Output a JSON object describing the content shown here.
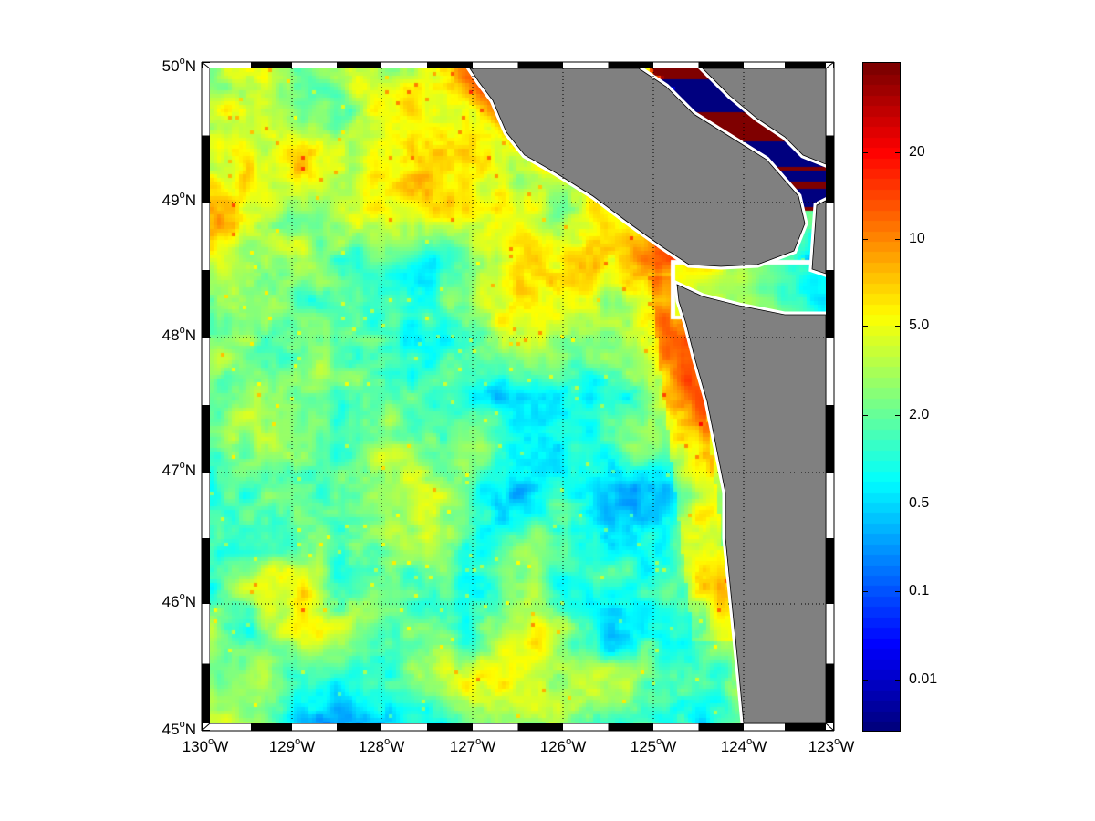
{
  "map": {
    "latitude_labels": [
      {
        "deg": "50",
        "hem": "N"
      },
      {
        "deg": "49",
        "hem": "N"
      },
      {
        "deg": "48",
        "hem": "N"
      },
      {
        "deg": "47",
        "hem": "N"
      },
      {
        "deg": "46",
        "hem": "N"
      },
      {
        "deg": "45",
        "hem": "N"
      }
    ],
    "longitude_labels": [
      {
        "deg": "130",
        "hem": "W"
      },
      {
        "deg": "129",
        "hem": "W"
      },
      {
        "deg": "128",
        "hem": "W"
      },
      {
        "deg": "127",
        "hem": "W"
      },
      {
        "deg": "126",
        "hem": "W"
      },
      {
        "deg": "125",
        "hem": "W"
      },
      {
        "deg": "124",
        "hem": "W"
      },
      {
        "deg": "123",
        "hem": "W"
      }
    ],
    "lat_range": [
      45,
      50
    ],
    "lon_range": [
      -130,
      -123
    ],
    "grid": true,
    "land_color": "#808080",
    "coastline_color": "#ffffff",
    "colormap": "jet"
  },
  "colorbar": {
    "tick_labels": [
      "20",
      "10",
      "5.0",
      "2.0",
      "0.5",
      "0.1",
      "0.01"
    ]
  }
}
